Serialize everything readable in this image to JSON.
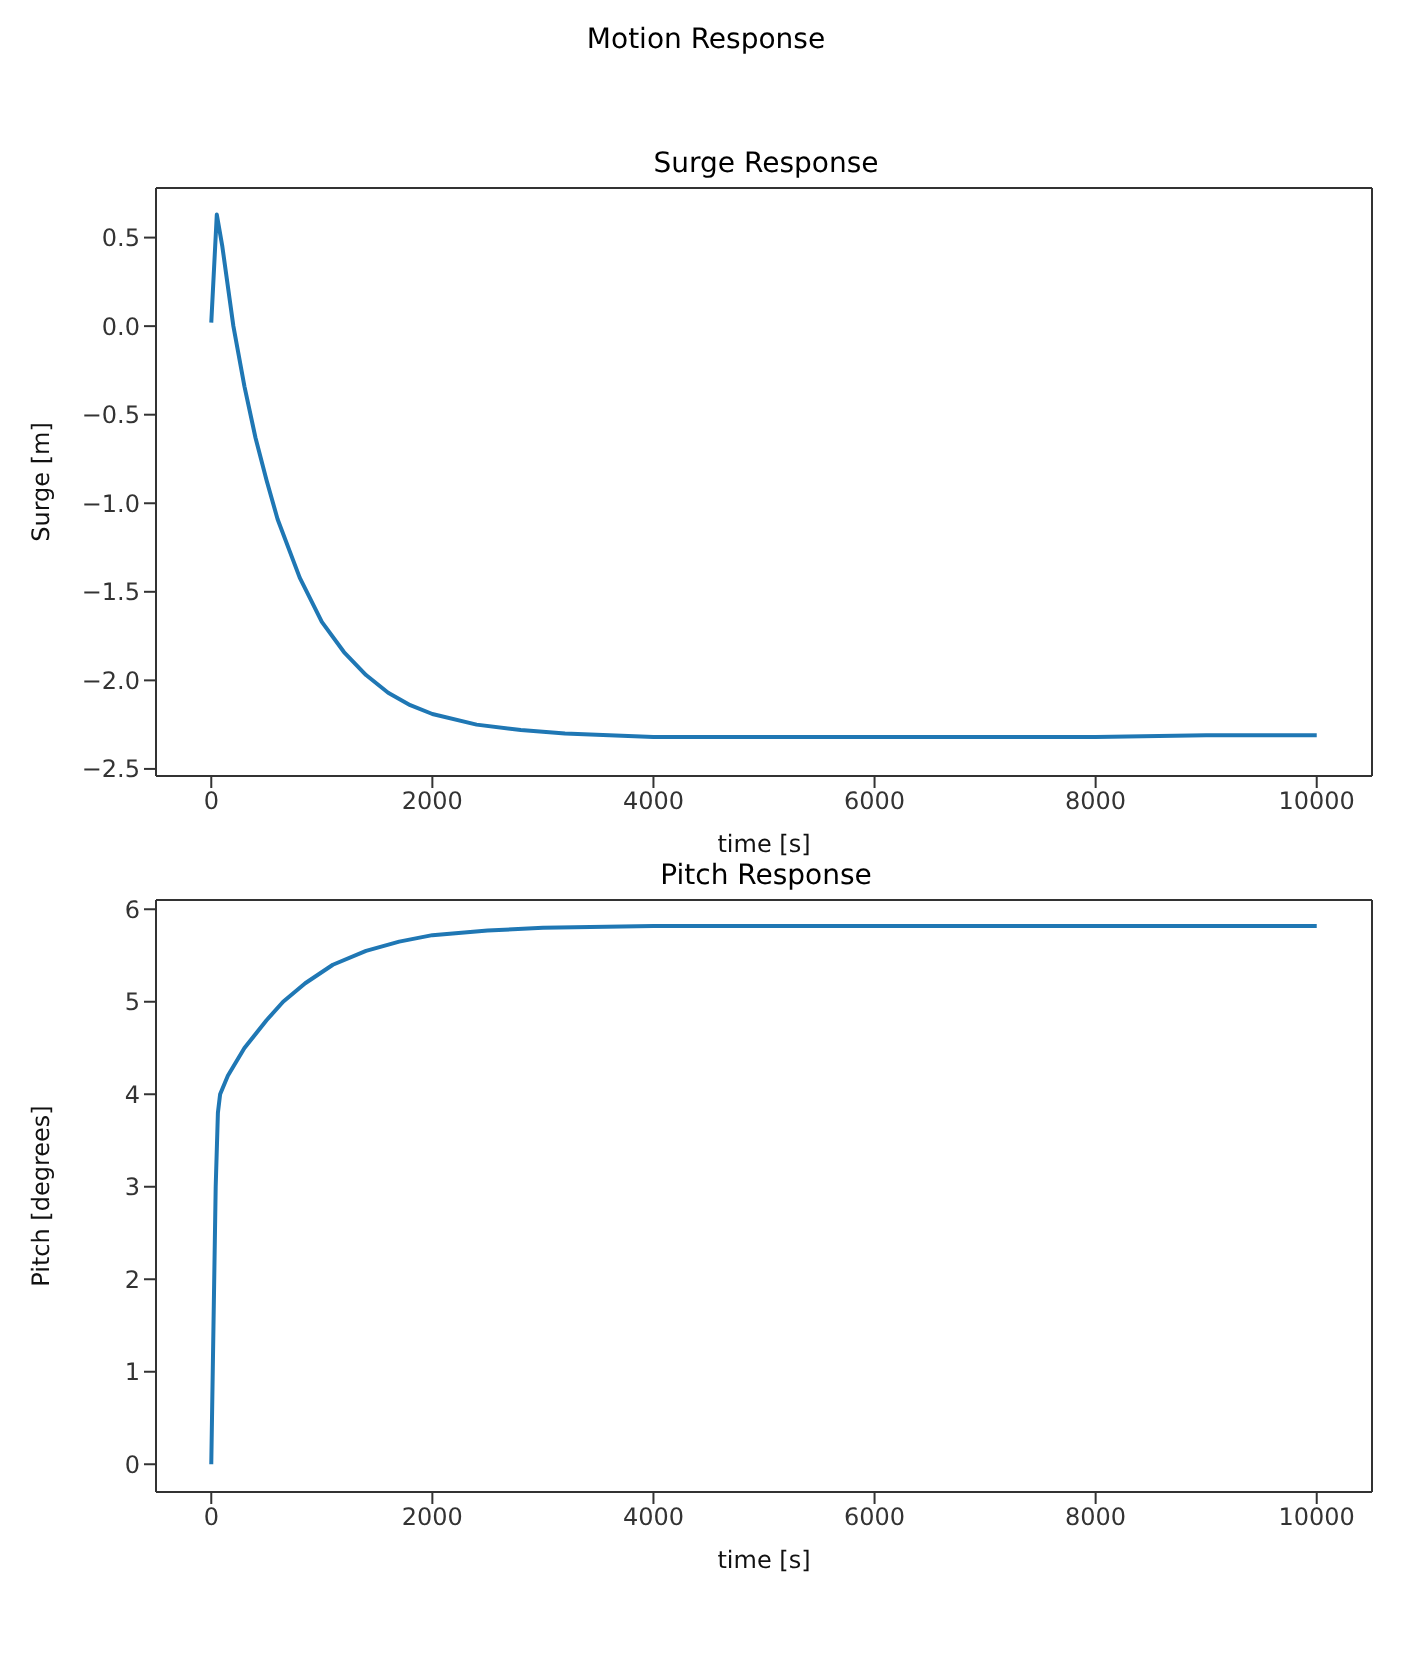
{
  "chart_data": [
    {
      "type": "line",
      "title": "Motion Response",
      "subtitle": "Surge Response",
      "xlabel": "time [s]",
      "ylabel": "Surge [m]",
      "x": [
        0,
        50,
        100,
        200,
        300,
        400,
        500,
        600,
        800,
        1000,
        1200,
        1400,
        1600,
        1800,
        2000,
        2400,
        2800,
        3200,
        3600,
        4000,
        5000,
        6000,
        7000,
        8000,
        9000,
        10000
      ],
      "series": [
        {
          "color": "#1f77b4",
          "values": [
            0.02,
            0.63,
            0.45,
            0.0,
            -0.34,
            -0.63,
            -0.87,
            -1.09,
            -1.42,
            -1.67,
            -1.84,
            -1.97,
            -2.07,
            -2.14,
            -2.19,
            -2.25,
            -2.28,
            -2.3,
            -2.31,
            -2.32,
            -2.32,
            -2.32,
            -2.32,
            -2.32,
            -2.31,
            -2.31
          ]
        }
      ],
      "xlim": [
        -500,
        10500
      ],
      "xticks": [
        0,
        2000,
        4000,
        6000,
        8000,
        10000
      ],
      "ylim": [
        -2.54,
        0.78
      ],
      "yticks": [
        {
          "value": -2.5,
          "label": "−2.5"
        },
        {
          "value": -2.0,
          "label": "−2.0"
        },
        {
          "value": -1.5,
          "label": "−1.5"
        },
        {
          "value": -1.0,
          "label": "−1.0"
        },
        {
          "value": -0.5,
          "label": "−0.5"
        },
        {
          "value": 0,
          "label": "0.0"
        },
        {
          "value": 0.5,
          "label": "0.5"
        }
      ],
      "grid": false,
      "legend": false,
      "marker": "none",
      "line_style": "solid"
    },
    {
      "type": "line",
      "subtitle": "Pitch Response",
      "xlabel": "time [s]",
      "ylabel": "Pitch [degrees]",
      "x": [
        0,
        20,
        40,
        60,
        80,
        150,
        300,
        500,
        650,
        850,
        1100,
        1400,
        1700,
        2000,
        2500,
        3000,
        4000,
        5000,
        6000,
        7000,
        8000,
        9000,
        10000
      ],
      "series": [
        {
          "color": "#1f77b4",
          "values": [
            0,
            1.5,
            3.0,
            3.8,
            4.0,
            4.2,
            4.5,
            4.8,
            5.0,
            5.2,
            5.4,
            5.55,
            5.65,
            5.72,
            5.77,
            5.8,
            5.82,
            5.82,
            5.82,
            5.82,
            5.82,
            5.82,
            5.82
          ]
        }
      ],
      "xlim": [
        -500,
        10500
      ],
      "xticks": [
        0,
        2000,
        4000,
        6000,
        8000,
        10000
      ],
      "ylim": [
        -0.3,
        6.1
      ],
      "yticks": [
        0,
        1,
        2,
        3,
        4,
        5,
        6
      ],
      "grid": false,
      "legend": false,
      "marker": "none",
      "line_style": "solid"
    }
  ]
}
